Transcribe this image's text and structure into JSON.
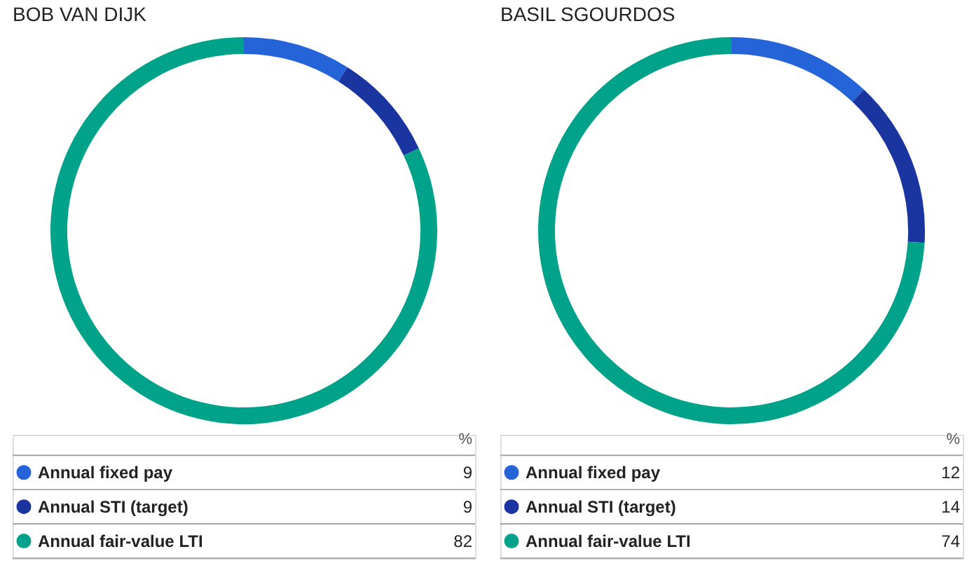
{
  "chart_data": [
    {
      "type": "donut",
      "title": "BOB VAN DIJK",
      "categories": [
        "Annual fixed pay",
        "Annual STI (target)",
        "Annual fair-value LTI"
      ],
      "values": [
        9,
        9,
        82
      ],
      "colors": [
        "#2563d9",
        "#1a35a0",
        "#00a38a"
      ],
      "legend": "bottom",
      "legend_title": "%",
      "data_labels": true
    },
    {
      "type": "donut",
      "title": "BASIL SGOURDOS",
      "categories": [
        "Annual fixed pay",
        "Annual STI (target)",
        "Annual fair-value LTI"
      ],
      "values": [
        12,
        14,
        74
      ],
      "colors": [
        "#2563d9",
        "#1a35a0",
        "#00a38a"
      ],
      "legend": "bottom",
      "legend_title": "%",
      "data_labels": true
    }
  ]
}
